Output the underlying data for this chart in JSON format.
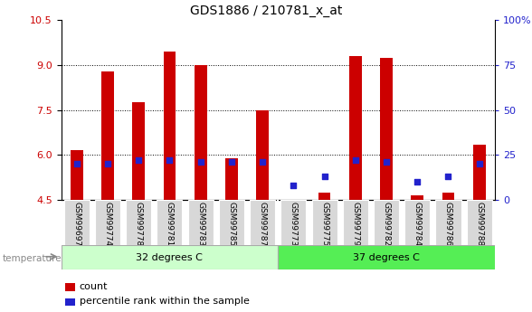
{
  "title": "GDS1886 / 210781_x_at",
  "samples": [
    "GSM99697",
    "GSM99774",
    "GSM99778",
    "GSM99781",
    "GSM99783",
    "GSM99785",
    "GSM99787",
    "GSM99773",
    "GSM99775",
    "GSM99779",
    "GSM99782",
    "GSM99784",
    "GSM99786",
    "GSM99788"
  ],
  "count_values": [
    6.15,
    8.8,
    7.75,
    9.45,
    9.0,
    5.9,
    7.5,
    4.5,
    4.75,
    9.3,
    9.25,
    4.65,
    4.75,
    6.35
  ],
  "percentile_values": [
    20,
    20,
    22,
    22,
    21,
    21,
    21,
    8,
    13,
    22,
    21,
    10,
    13,
    20
  ],
  "y_min": 4.5,
  "y_max": 10.5,
  "y_ticks": [
    4.5,
    6.0,
    7.5,
    9.0,
    10.5
  ],
  "right_y_ticks": [
    0,
    25,
    50,
    75,
    100
  ],
  "right_y_labels": [
    "0",
    "25",
    "50",
    "75",
    "100%"
  ],
  "bar_color": "#cc0000",
  "dot_color": "#2222cc",
  "group1_label": "32 degrees C",
  "group2_label": "37 degrees C",
  "group1_color": "#ccffcc",
  "group2_color": "#55ee55",
  "group1_count": 7,
  "group2_count": 7,
  "temperature_label": "temperature",
  "legend_count_label": "count",
  "legend_pct_label": "percentile rank within the sample",
  "tick_label_color": "#cc0000",
  "right_tick_color": "#2222cc",
  "bar_bottom": 4.5,
  "bar_width": 0.4,
  "dot_size": 18
}
